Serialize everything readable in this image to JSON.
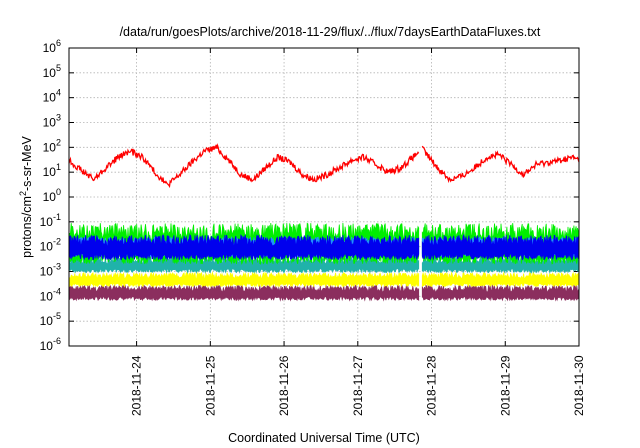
{
  "chart_data": {
    "type": "line",
    "title": "/data/run/goesPlots/archive/2018-11-29/flux/../flux/7daysEarthDataFluxes.txt",
    "xlabel": "Coordinated Universal Time (UTC)",
    "ylabel": "protons/cm2-s-sr-MeV",
    "ylabel_parts": {
      "main": "protons/cm",
      "sup": "2",
      "rest": "-s-sr-MeV"
    },
    "yscale": "log",
    "ylim": [
      1e-06,
      1000000.0
    ],
    "xlim": [
      "2018-11-23T02:00",
      "2018-11-30T00:00"
    ],
    "grid": true,
    "gap": [
      "2018-11-27T20:00",
      "2018-11-27T21:00"
    ],
    "x_ticks": [
      {
        "label": "2018-11-24",
        "date": "2018-11-24T00:00"
      },
      {
        "label": "2018-11-25",
        "date": "2018-11-25T00:00"
      },
      {
        "label": "2018-11-26",
        "date": "2018-11-26T00:00"
      },
      {
        "label": "2018-11-27",
        "date": "2018-11-27T00:00"
      },
      {
        "label": "2018-11-28",
        "date": "2018-11-28T00:00"
      },
      {
        "label": "2018-11-29",
        "date": "2018-11-29T00:00"
      },
      {
        "label": "2018-11-30",
        "date": "2018-11-30T00:00"
      }
    ],
    "y_ticks": [
      {
        "base": "10",
        "exp": "-6",
        "value": 1e-06
      },
      {
        "base": "10",
        "exp": "-5",
        "value": 1e-05
      },
      {
        "base": "10",
        "exp": "-4",
        "value": 0.0001
      },
      {
        "base": "10",
        "exp": "-3",
        "value": 0.001
      },
      {
        "base": "10",
        "exp": "-2",
        "value": 0.01
      },
      {
        "base": "10",
        "exp": "-1",
        "value": 0.1
      },
      {
        "base": "10",
        "exp": "0",
        "value": 1
      },
      {
        "base": "10",
        "exp": "1",
        "value": 10
      },
      {
        "base": "10",
        "exp": "2",
        "value": 100
      },
      {
        "base": "10",
        "exp": "3",
        "value": 1000
      },
      {
        "base": "10",
        "exp": "4",
        "value": 10000
      },
      {
        "base": "10",
        "exp": "5",
        "value": 100000
      },
      {
        "base": "10",
        "exp": "6",
        "value": 1000000
      }
    ],
    "series": [
      {
        "color": "#8b2e5e",
        "band": true,
        "x": [
          "2018-11-23T02:00",
          "2018-11-24T00:00",
          "2018-11-25T00:00",
          "2018-11-26T00:00",
          "2018-11-27T00:00",
          "2018-11-27T20:00",
          "2018-11-27T21:00",
          "2018-11-28T00:00",
          "2018-11-29T00:00",
          "2018-11-30T00:00"
        ],
        "low": [
          7e-05,
          7e-05,
          7e-05,
          7e-05,
          7e-05,
          7e-05,
          7e-05,
          7e-05,
          7e-05,
          7e-05
        ],
        "high": [
          0.00028,
          0.00028,
          0.00028,
          0.00028,
          0.00028,
          0.00028,
          0.00028,
          0.00028,
          0.00028,
          0.00028
        ]
      },
      {
        "color": "#ffff00",
        "band": true,
        "x": [
          "2018-11-23T02:00",
          "2018-11-24T00:00",
          "2018-11-25T00:00",
          "2018-11-26T00:00",
          "2018-11-27T00:00",
          "2018-11-27T20:00",
          "2018-11-27T21:00",
          "2018-11-28T00:00",
          "2018-11-29T00:00",
          "2018-11-30T00:00"
        ],
        "low": [
          0.00025,
          0.00025,
          0.00025,
          0.00025,
          0.00025,
          0.00025,
          0.00025,
          0.00025,
          0.00025,
          0.00025
        ],
        "high": [
          0.0009,
          0.0009,
          0.0009,
          0.0009,
          0.0009,
          0.0009,
          0.0009,
          0.0009,
          0.0009,
          0.0009
        ]
      },
      {
        "color": "#20b2aa",
        "band": true,
        "x": [
          "2018-11-23T02:00",
          "2018-11-24T00:00",
          "2018-11-25T00:00",
          "2018-11-26T00:00",
          "2018-11-27T00:00",
          "2018-11-27T20:00",
          "2018-11-27T21:00",
          "2018-11-28T00:00",
          "2018-11-29T00:00",
          "2018-11-30T00:00"
        ],
        "low": [
          0.0009,
          0.0009,
          0.0009,
          0.0009,
          0.0009,
          0.0009,
          0.0009,
          0.0009,
          0.0009,
          0.0009
        ],
        "high": [
          0.004,
          0.004,
          0.004,
          0.004,
          0.004,
          0.004,
          0.004,
          0.004,
          0.004,
          0.004
        ]
      },
      {
        "color": "#00ee00",
        "band": true,
        "x": [
          "2018-11-23T02:00",
          "2018-11-24T00:00",
          "2018-11-25T00:00",
          "2018-11-26T00:00",
          "2018-11-27T00:00",
          "2018-11-27T20:00",
          "2018-11-27T21:00",
          "2018-11-28T00:00",
          "2018-11-29T00:00",
          "2018-11-30T00:00"
        ],
        "low": [
          0.002,
          0.002,
          0.002,
          0.002,
          0.002,
          0.002,
          0.002,
          0.002,
          0.002,
          0.002
        ],
        "high": [
          0.09,
          0.09,
          0.09,
          0.09,
          0.09,
          0.09,
          0.09,
          0.09,
          0.09,
          0.09
        ]
      },
      {
        "color": "#1e90ff",
        "band": true,
        "x": [
          "2018-11-23T02:00",
          "2018-11-24T00:00",
          "2018-11-25T00:00",
          "2018-11-26T00:00",
          "2018-11-27T00:00",
          "2018-11-27T20:00",
          "2018-11-27T21:00",
          "2018-11-28T00:00",
          "2018-11-29T00:00",
          "2018-11-30T00:00"
        ],
        "low": [
          0.004,
          0.004,
          0.004,
          0.004,
          0.004,
          0.004,
          0.004,
          0.004,
          0.004,
          0.004
        ],
        "high": [
          0.025,
          0.025,
          0.025,
          0.025,
          0.025,
          0.025,
          0.025,
          0.025,
          0.025,
          0.025
        ]
      },
      {
        "color": "#0000ee",
        "band": true,
        "x": [
          "2018-11-23T02:00",
          "2018-11-24T00:00",
          "2018-11-25T00:00",
          "2018-11-26T00:00",
          "2018-11-27T00:00",
          "2018-11-27T20:00",
          "2018-11-27T21:00",
          "2018-11-28T00:00",
          "2018-11-29T00:00",
          "2018-11-30T00:00"
        ],
        "low": [
          0.003,
          0.003,
          0.003,
          0.003,
          0.003,
          0.003,
          0.003,
          0.003,
          0.003,
          0.003
        ],
        "high": [
          0.03,
          0.03,
          0.03,
          0.03,
          0.03,
          0.03,
          0.03,
          0.03,
          0.03,
          0.03
        ]
      },
      {
        "color": "#ff0000",
        "band": false,
        "x": [
          "2018-11-23T02:00",
          "2018-11-23T06:00",
          "2018-11-23T10:00",
          "2018-11-23T14:00",
          "2018-11-23T18:00",
          "2018-11-23T22:00",
          "2018-11-24T02:00",
          "2018-11-24T06:00",
          "2018-11-24T10:00",
          "2018-11-24T14:00",
          "2018-11-24T18:00",
          "2018-11-24T22:00",
          "2018-11-25T02:00",
          "2018-11-25T06:00",
          "2018-11-25T10:00",
          "2018-11-25T14:00",
          "2018-11-25T18:00",
          "2018-11-25T22:00",
          "2018-11-26T02:00",
          "2018-11-26T06:00",
          "2018-11-26T10:00",
          "2018-11-26T14:00",
          "2018-11-26T18:00",
          "2018-11-26T22:00",
          "2018-11-27T02:00",
          "2018-11-27T06:00",
          "2018-11-27T10:00",
          "2018-11-27T14:00",
          "2018-11-27T18:00",
          "2018-11-27T20:00",
          "2018-11-27T21:00",
          "2018-11-27T22:00",
          "2018-11-28T02:00",
          "2018-11-28T06:00",
          "2018-11-28T10:00",
          "2018-11-28T14:00",
          "2018-11-28T18:00",
          "2018-11-28T22:00",
          "2018-11-29T02:00",
          "2018-11-29T06:00",
          "2018-11-29T10:00",
          "2018-11-29T14:00",
          "2018-11-29T18:00",
          "2018-11-29T22:00",
          "2018-11-30T00:00"
        ],
        "y": [
          30,
          12,
          5,
          15,
          40,
          70,
          40,
          10,
          3,
          8,
          25,
          70,
          100,
          30,
          8,
          5,
          15,
          40,
          25,
          8,
          5,
          8,
          15,
          30,
          40,
          20,
          10,
          15,
          40,
          70,
          90,
          60,
          15,
          5,
          7,
          15,
          40,
          50,
          20,
          8,
          20,
          25,
          30,
          40,
          30
        ]
      }
    ]
  }
}
